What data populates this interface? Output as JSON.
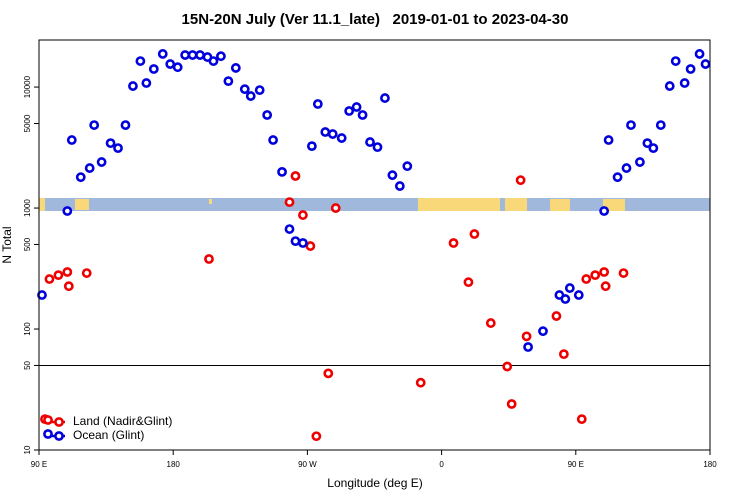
{
  "chart_data": {
    "type": "scatter",
    "title": "15N-20N July (Ver 11.1_late)   2019-01-01 to 2023-04-30",
    "x_label": "Longitude (deg E)",
    "y_label": "N Total",
    "xlim": [
      90,
      540
    ],
    "xticks": [
      {
        "value": 90,
        "label": "90 E"
      },
      {
        "value": 180,
        "label": "180"
      },
      {
        "value": 270,
        "label": "90 W"
      },
      {
        "value": 360,
        "label": "0"
      },
      {
        "value": 450,
        "label": "90 E"
      },
      {
        "value": 540,
        "label": "180"
      }
    ],
    "ylim": [
      10,
      24500
    ],
    "log_y": true,
    "yticks": [
      10,
      50,
      100,
      500,
      1000,
      5000,
      10000
    ],
    "reference_line": 50,
    "legend": "lower left",
    "series": [
      {
        "name": "Land (Nadir&Glint)",
        "color": "#ee0000",
        "x": [
          94,
          97,
          103,
          109,
          110,
          122,
          204,
          258,
          262,
          267,
          272,
          276,
          284,
          289,
          346,
          368,
          378,
          382,
          393,
          404,
          407,
          413,
          417,
          437,
          442,
          454,
          457,
          463,
          469,
          470,
          482
        ],
        "values": [
          18,
          259,
          279,
          296,
          226,
          290,
          379,
          1120,
          1840,
          875,
          485,
          13,
          43,
          1000,
          36,
          514,
          244,
          610,
          112,
          49,
          24,
          1700,
          87,
          128,
          62,
          18,
          259,
          279,
          296,
          226,
          290
        ]
      },
      {
        "name": "Ocean (Glint)",
        "color": "#0000dd",
        "x": [
          92,
          109,
          112,
          118,
          124,
          127,
          132,
          138,
          143,
          148,
          153,
          158,
          162,
          167,
          173,
          178,
          183,
          188,
          193,
          198,
          203,
          207,
          212,
          217,
          222,
          228,
          232,
          238,
          243,
          247,
          253,
          258,
          262,
          267,
          273,
          277,
          282,
          287,
          293,
          298,
          303,
          307,
          312,
          317,
          322,
          327,
          332,
          337,
          418,
          428,
          439,
          443,
          446,
          452,
          469,
          472,
          478,
          484,
          487,
          493,
          498,
          502,
          507,
          513,
          517,
          523,
          527,
          533,
          537
        ],
        "values": [
          191,
          945,
          3650,
          1800,
          2140,
          4850,
          2400,
          3440,
          3130,
          4850,
          10200,
          16400,
          10800,
          14100,
          18800,
          15500,
          14600,
          18400,
          18400,
          18400,
          17700,
          16400,
          18000,
          11200,
          14400,
          9610,
          8430,
          9440,
          5880,
          3650,
          1990,
          670,
          533,
          514,
          3250,
          7250,
          4250,
          4090,
          3790,
          6340,
          6840,
          5880,
          3510,
          3190,
          8110,
          1870,
          1520,
          2220,
          71,
          96,
          191,
          177,
          218,
          191,
          945,
          3650,
          1800,
          2140,
          4850,
          2400,
          3440,
          3130,
          4850,
          10200,
          16400,
          10800,
          14100,
          18800,
          15500
        ]
      }
    ]
  }
}
